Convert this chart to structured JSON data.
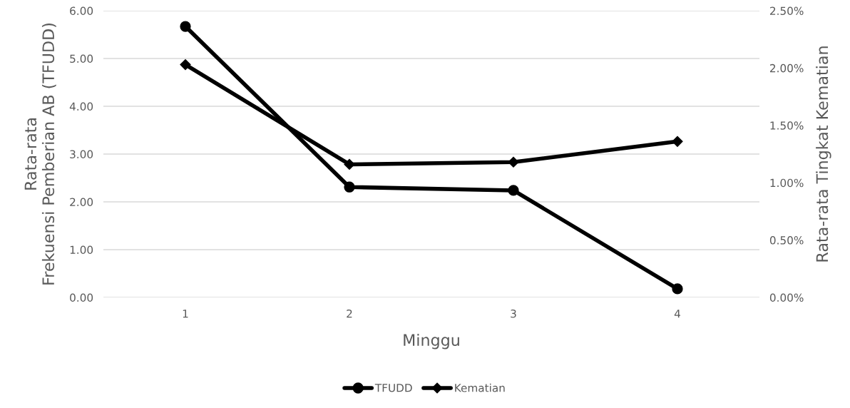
{
  "chart_data": {
    "type": "line",
    "xlabel": "Minggu",
    "ylabel": "Rata-rata\nFrekuensi Pemberian AB (TFUDD)",
    "y2label": "Rata-rata Tingkat Kematian",
    "categories": [
      "1",
      "2",
      "3",
      "4"
    ],
    "series": [
      {
        "name": "TFUDD",
        "color": "#000000",
        "marker": "circle",
        "values": [
          5.67,
          2.31,
          2.24,
          0.18
        ]
      },
      {
        "name": "Kematian",
        "color": "#000000",
        "marker": "diamond",
        "axis": "y2",
        "values": [
          2.03,
          1.16,
          1.18,
          1.36
        ]
      }
    ],
    "ylim": [
      0,
      6
    ],
    "yticks": [
      {
        "value": 0,
        "label": "0.00"
      },
      {
        "value": 1,
        "label": "1.00"
      },
      {
        "value": 2,
        "label": "2.00"
      },
      {
        "value": 3,
        "label": "3.00"
      },
      {
        "value": 4,
        "label": "4.00"
      },
      {
        "value": 5,
        "label": "5.00"
      },
      {
        "value": 6,
        "label": "6.00"
      }
    ],
    "y2lim": [
      0,
      2.5
    ],
    "y2ticks": [
      {
        "value": 0,
        "label": "0.00%"
      },
      {
        "value": 0.5,
        "label": "0.50%"
      },
      {
        "value": 1,
        "label": "1.00%"
      },
      {
        "value": 1.5,
        "label": "1.50%"
      },
      {
        "value": 2,
        "label": "2.00%"
      },
      {
        "value": 2.5,
        "label": "2.50%"
      }
    ],
    "grid": "y",
    "legend": "bottom",
    "line_style": "solid"
  }
}
